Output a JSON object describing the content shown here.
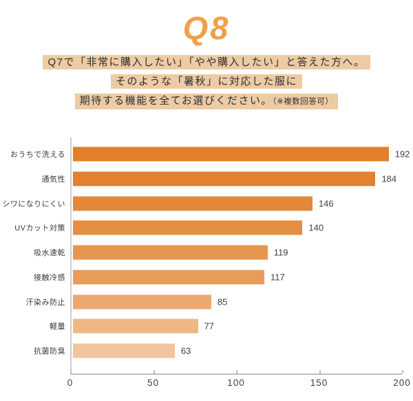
{
  "page": {
    "background": "#ffffff"
  },
  "header": {
    "title": "Q8",
    "title_color": "#F0A04A",
    "highlight_color": "#EDCBA4",
    "text_color": "#2E2E2E",
    "description_lines": [
      "Q7で「非常に購入したい」「やや購入したい」と答えた方へ。",
      "そのような「暑秋」に対応した服に",
      "期待する機能を全てお選びください。"
    ],
    "description_note": "（※複数回答可）"
  },
  "chart_data": {
    "type": "bar",
    "orientation": "horizontal",
    "title": "",
    "xlabel": "",
    "ylabel": "",
    "categories": [
      "おうちで洗える",
      "通気性",
      "シワになりにくい",
      "UVカット対策",
      "吸水速乾",
      "接触冷感",
      "汗染み防止",
      "軽量",
      "抗菌防臭"
    ],
    "values": [
      192,
      184,
      146,
      140,
      119,
      117,
      85,
      77,
      63
    ],
    "bar_colors": [
      "#E1802C",
      "#E2822F",
      "#E38838",
      "#E58F43",
      "#E7964F",
      "#E89C5A",
      "#EBA971",
      "#EEB886",
      "#F0C59D"
    ],
    "xlim": [
      0,
      200
    ],
    "x_ticks": [
      0,
      50,
      100,
      150,
      200
    ],
    "value_labels": true,
    "grid": false,
    "legend": false
  }
}
